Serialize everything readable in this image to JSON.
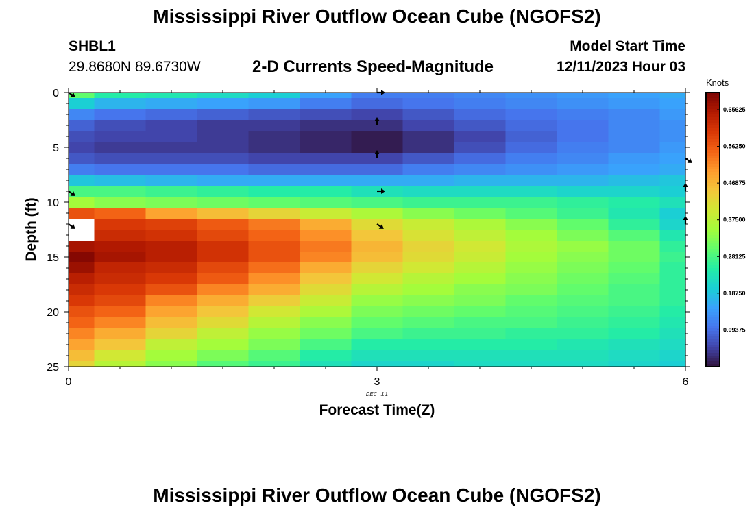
{
  "header": {
    "title": "Mississippi River Outflow Ocean Cube (NGOFS2)",
    "station": "SHBL1",
    "coords": "29.8680N  89.6730W",
    "subtitle": "2-D Currents Speed-Magnitude",
    "model_start_label": "Model Start Time",
    "model_start_value": "12/11/2023 Hour 03"
  },
  "footer": {
    "title": "Mississippi River Outflow Ocean Cube (NGOFS2)"
  },
  "colors": {
    "colormap": [
      "#30123b",
      "#4145ab",
      "#4675ed",
      "#39a2fc",
      "#1bcfd4",
      "#24eca6",
      "#61fc6c",
      "#a4fc3b",
      "#d1e834",
      "#f3c63a",
      "#fe9b2d",
      "#f36315",
      "#d93806",
      "#b11901",
      "#7a0402"
    ]
  },
  "chart_data": {
    "type": "heatmap",
    "xlabel": "Forecast Time(Z)",
    "ylabel": "Depth (ft)",
    "date_label": "DEC 11",
    "x_range": [
      0,
      6
    ],
    "y_range": [
      0,
      25
    ],
    "x_ticks": [
      "0",
      "3",
      "6"
    ],
    "y_ticks": [
      "0",
      "5",
      "10",
      "15",
      "20",
      "25"
    ],
    "colorbar": {
      "units": "Knots",
      "range": [
        0,
        0.7
      ],
      "ticks": [
        "0.09375",
        "0.18750",
        "0.28125",
        "0.37500",
        "0.46875",
        "0.56250",
        "0.65625"
      ]
    },
    "time_columns": [
      0,
      0.5,
      1,
      1.5,
      2,
      2.5,
      3,
      3.5,
      4,
      4.5,
      5,
      5.5,
      6
    ],
    "depth_rows": [
      0,
      1,
      2,
      3,
      4,
      5,
      6,
      7,
      8,
      9,
      10,
      11,
      12,
      13,
      14,
      15,
      16,
      17,
      18,
      19,
      20,
      21,
      22,
      23,
      24,
      25
    ],
    "speed_knots": [
      [
        0.3,
        0.25,
        0.24,
        0.22,
        0.2,
        0.15,
        0.11,
        0.11,
        0.12,
        0.13,
        0.14,
        0.15,
        0.16
      ],
      [
        0.2,
        0.17,
        0.16,
        0.15,
        0.14,
        0.11,
        0.09,
        0.1,
        0.11,
        0.12,
        0.13,
        0.14,
        0.15
      ],
      [
        0.12,
        0.1,
        0.09,
        0.08,
        0.07,
        0.06,
        0.05,
        0.07,
        0.09,
        0.1,
        0.11,
        0.12,
        0.14
      ],
      [
        0.08,
        0.06,
        0.05,
        0.04,
        0.04,
        0.03,
        0.03,
        0.05,
        0.07,
        0.09,
        0.1,
        0.12,
        0.13
      ],
      [
        0.06,
        0.05,
        0.05,
        0.04,
        0.03,
        0.02,
        0.01,
        0.03,
        0.05,
        0.08,
        0.1,
        0.12,
        0.13
      ],
      [
        0.05,
        0.04,
        0.04,
        0.04,
        0.03,
        0.02,
        0.01,
        0.03,
        0.06,
        0.09,
        0.11,
        0.12,
        0.14
      ],
      [
        0.07,
        0.06,
        0.06,
        0.06,
        0.05,
        0.05,
        0.05,
        0.07,
        0.09,
        0.11,
        0.12,
        0.14,
        0.15
      ],
      [
        0.11,
        0.1,
        0.1,
        0.1,
        0.09,
        0.09,
        0.09,
        0.11,
        0.12,
        0.13,
        0.14,
        0.15,
        0.16
      ],
      [
        0.19,
        0.18,
        0.17,
        0.16,
        0.16,
        0.16,
        0.16,
        0.16,
        0.17,
        0.17,
        0.17,
        0.18,
        0.19
      ],
      [
        0.28,
        0.28,
        0.27,
        0.26,
        0.25,
        0.25,
        0.23,
        0.22,
        0.22,
        0.22,
        0.21,
        0.21,
        0.2
      ],
      [
        0.35,
        0.33,
        0.32,
        0.31,
        0.3,
        0.29,
        0.28,
        0.27,
        0.27,
        0.27,
        0.26,
        0.25,
        0.23
      ],
      [
        0.57,
        0.55,
        0.49,
        0.46,
        0.43,
        0.39,
        0.36,
        0.33,
        0.31,
        0.29,
        0.27,
        0.24,
        0.2
      ],
      [
        0.62,
        0.6,
        0.59,
        0.56,
        0.53,
        0.48,
        0.42,
        0.39,
        0.36,
        0.33,
        0.3,
        0.26,
        0.21
      ],
      [
        0.63,
        0.62,
        0.61,
        0.58,
        0.55,
        0.51,
        0.45,
        0.41,
        0.38,
        0.35,
        0.32,
        0.29,
        0.24
      ],
      [
        0.66,
        0.65,
        0.64,
        0.61,
        0.57,
        0.53,
        0.47,
        0.43,
        0.4,
        0.36,
        0.34,
        0.31,
        0.26
      ],
      [
        0.69,
        0.66,
        0.64,
        0.61,
        0.57,
        0.52,
        0.46,
        0.42,
        0.39,
        0.35,
        0.33,
        0.31,
        0.27
      ],
      [
        0.67,
        0.63,
        0.62,
        0.58,
        0.54,
        0.48,
        0.43,
        0.4,
        0.37,
        0.34,
        0.32,
        0.3,
        0.26
      ],
      [
        0.64,
        0.62,
        0.6,
        0.56,
        0.51,
        0.45,
        0.4,
        0.37,
        0.35,
        0.33,
        0.31,
        0.29,
        0.26
      ],
      [
        0.62,
        0.6,
        0.57,
        0.52,
        0.48,
        0.42,
        0.37,
        0.35,
        0.33,
        0.32,
        0.3,
        0.28,
        0.26
      ],
      [
        0.6,
        0.58,
        0.52,
        0.48,
        0.44,
        0.39,
        0.34,
        0.33,
        0.32,
        0.3,
        0.29,
        0.28,
        0.26
      ],
      [
        0.57,
        0.55,
        0.49,
        0.45,
        0.4,
        0.36,
        0.32,
        0.31,
        0.3,
        0.29,
        0.28,
        0.27,
        0.25
      ],
      [
        0.55,
        0.52,
        0.46,
        0.42,
        0.37,
        0.33,
        0.3,
        0.29,
        0.28,
        0.28,
        0.27,
        0.26,
        0.24
      ],
      [
        0.52,
        0.48,
        0.43,
        0.38,
        0.34,
        0.31,
        0.28,
        0.27,
        0.27,
        0.26,
        0.26,
        0.25,
        0.23
      ],
      [
        0.49,
        0.45,
        0.38,
        0.35,
        0.32,
        0.28,
        0.25,
        0.25,
        0.25,
        0.25,
        0.24,
        0.23,
        0.22
      ],
      [
        0.46,
        0.4,
        0.35,
        0.32,
        0.29,
        0.25,
        0.23,
        0.23,
        0.23,
        0.23,
        0.23,
        0.22,
        0.21
      ],
      [
        0.43,
        0.37,
        0.33,
        0.29,
        0.27,
        0.23,
        0.21,
        0.21,
        0.22,
        0.22,
        0.22,
        0.21,
        0.2
      ]
    ],
    "missing_cells": [
      [
        12,
        0
      ],
      [
        13,
        0
      ]
    ],
    "current_vectors": [
      {
        "time": 0,
        "depth": 0,
        "direction": "down-right"
      },
      {
        "time": 0,
        "depth": 9,
        "direction": "down-right"
      },
      {
        "time": 0,
        "depth": 12,
        "direction": "down-right"
      },
      {
        "time": 3,
        "depth": 0,
        "direction": "right"
      },
      {
        "time": 3,
        "depth": 3,
        "direction": "up"
      },
      {
        "time": 3,
        "depth": 6,
        "direction": "up"
      },
      {
        "time": 3,
        "depth": 9,
        "direction": "right"
      },
      {
        "time": 3,
        "depth": 12,
        "direction": "down-right"
      },
      {
        "time": 6,
        "depth": 6,
        "direction": "down-right"
      },
      {
        "time": 6,
        "depth": 9,
        "direction": "up"
      },
      {
        "time": 6,
        "depth": 12,
        "direction": "up"
      }
    ]
  }
}
